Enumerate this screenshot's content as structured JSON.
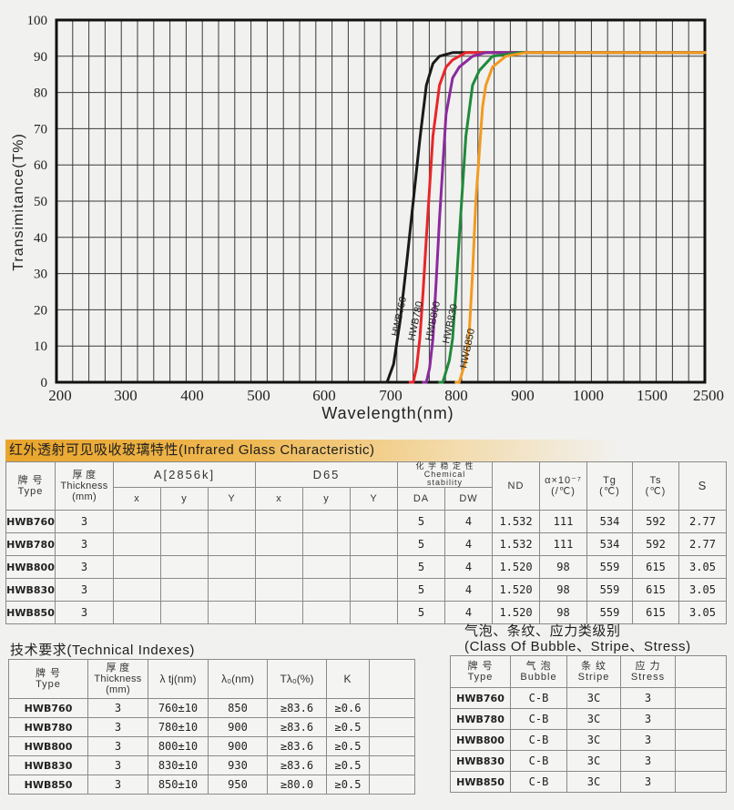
{
  "chart_data": {
    "type": "line",
    "title": "",
    "xlabel": "Wavelength(nm)",
    "ylabel": "Transimitance(T%)",
    "x_ticks": [
      "200",
      "300",
      "400",
      "500",
      "600",
      "700",
      "800",
      "900",
      "1000",
      "1500",
      "2500"
    ],
    "y_ticks": [
      "0",
      "10",
      "20",
      "30",
      "40",
      "50",
      "60",
      "70",
      "80",
      "90",
      "100"
    ],
    "ylim": [
      0,
      100
    ],
    "grid": true,
    "legend": "inline labels rotated along curves",
    "series": [
      {
        "name": "HWB760",
        "color": "#1a1a1a",
        "x": [
          690,
          700,
          710,
          720,
          730,
          740,
          750,
          760,
          770,
          780,
          800,
          900,
          2500
        ],
        "y": [
          0,
          0,
          5,
          17,
          33,
          50,
          67,
          82,
          88,
          90,
          91,
          91,
          91
        ]
      },
      {
        "name": "HWB780",
        "color": "#e8262a",
        "x": [
          735,
          740,
          745,
          750,
          755,
          760,
          770,
          780,
          790,
          800,
          820,
          900,
          2500
        ],
        "y": [
          0,
          0,
          4,
          12,
          25,
          40,
          68,
          82,
          87,
          89,
          91,
          91,
          91
        ]
      },
      {
        "name": "HWB800",
        "color": "#8b2a9e",
        "x": [
          755,
          760,
          765,
          770,
          775,
          780,
          790,
          800,
          810,
          830,
          850,
          900,
          2500
        ],
        "y": [
          0,
          0,
          4,
          12,
          28,
          45,
          74,
          84,
          87,
          90,
          91,
          91,
          91
        ]
      },
      {
        "name": "HWB830",
        "color": "#1f8a3a",
        "x": [
          780,
          785,
          790,
          795,
          800,
          805,
          810,
          820,
          830,
          840,
          860,
          900,
          2500
        ],
        "y": [
          0,
          0,
          3,
          6,
          12,
          25,
          40,
          68,
          82,
          86,
          90,
          91,
          91
        ]
      },
      {
        "name": "HWB850",
        "color": "#f29a21",
        "x": [
          805,
          810,
          815,
          820,
          825,
          830,
          835,
          845,
          850,
          860,
          880,
          910,
          2500
        ],
        "y": [
          0,
          0,
          3,
          6,
          14,
          30,
          50,
          76,
          82,
          87,
          90,
          91,
          91
        ]
      }
    ]
  },
  "characteristic": {
    "title": "红外透射可见吸收玻璃特性(Infrared Glass Characteristic)",
    "headers": {
      "type_cn": "牌 号",
      "type_en": "Type",
      "thick_cn": "厚 度",
      "thick_en": "Thickness",
      "thick_unit": "(mm)",
      "a2856": "A[2856k]",
      "d65": "D65",
      "x": "x",
      "y": "y",
      "Y": "Y",
      "chem_cn": "化 学 稳 定 性",
      "chem_en1": "Chemical",
      "chem_en2": "stability",
      "da": "DA",
      "dw": "DW",
      "nd": "ND",
      "alpha": "α×10⁻⁷",
      "alpha_unit": "(/℃)",
      "tg": "Tg",
      "tg_unit": "(℃)",
      "ts": "Ts",
      "ts_unit": "(℃)",
      "s": "S"
    },
    "rows": [
      {
        "type": "HWB760",
        "thickness": "3",
        "ax": "",
        "ay": "",
        "aY": "",
        "dx": "",
        "dy": "",
        "dY": "",
        "da": "5",
        "dw": "4",
        "nd": "1.532",
        "alpha": "111",
        "tg": "534",
        "ts": "592",
        "s": "2.77"
      },
      {
        "type": "HWB780",
        "thickness": "3",
        "ax": "",
        "ay": "",
        "aY": "",
        "dx": "",
        "dy": "",
        "dY": "",
        "da": "5",
        "dw": "4",
        "nd": "1.532",
        "alpha": "111",
        "tg": "534",
        "ts": "592",
        "s": "2.77"
      },
      {
        "type": "HWB800",
        "thickness": "3",
        "ax": "",
        "ay": "",
        "aY": "",
        "dx": "",
        "dy": "",
        "dY": "",
        "da": "5",
        "dw": "4",
        "nd": "1.520",
        "alpha": "98",
        "tg": "559",
        "ts": "615",
        "s": "3.05"
      },
      {
        "type": "HWB830",
        "thickness": "3",
        "ax": "",
        "ay": "",
        "aY": "",
        "dx": "",
        "dy": "",
        "dY": "",
        "da": "5",
        "dw": "4",
        "nd": "1.520",
        "alpha": "98",
        "tg": "559",
        "ts": "615",
        "s": "3.05"
      },
      {
        "type": "HWB850",
        "thickness": "3",
        "ax": "",
        "ay": "",
        "aY": "",
        "dx": "",
        "dy": "",
        "dY": "",
        "da": "5",
        "dw": "4",
        "nd": "1.520",
        "alpha": "98",
        "tg": "559",
        "ts": "615",
        "s": "3.05"
      }
    ]
  },
  "technical": {
    "title": "技术要求(Technical Indexes)",
    "headers": {
      "type_cn": "牌 号",
      "type_en": "Type",
      "thick_cn": "厚 度",
      "thick_en": "Thickness",
      "thick_unit": "(mm)",
      "ltj": "λ tj(nm)",
      "l0": "λ₀(nm)",
      "tl0": "Tλ₀(%)",
      "k": "K",
      "blank": ""
    },
    "rows": [
      {
        "type": "HWB760",
        "thickness": "3",
        "ltj": "760±10",
        "l0": "850",
        "tl0": "≥83.6",
        "k": "≥0.6"
      },
      {
        "type": "HWB780",
        "thickness": "3",
        "ltj": "780±10",
        "l0": "900",
        "tl0": "≥83.6",
        "k": "≥0.5"
      },
      {
        "type": "HWB800",
        "thickness": "3",
        "ltj": "800±10",
        "l0": "900",
        "tl0": "≥83.6",
        "k": "≥0.5"
      },
      {
        "type": "HWB830",
        "thickness": "3",
        "ltj": "830±10",
        "l0": "930",
        "tl0": "≥83.6",
        "k": "≥0.5"
      },
      {
        "type": "HWB850",
        "thickness": "3",
        "ltj": "850±10",
        "l0": "950",
        "tl0": "≥80.0",
        "k": "≥0.5"
      }
    ]
  },
  "bubble": {
    "title_cn": "气泡、条纹、应力类级别",
    "title_en": "(Class Of Bubble、Stripe、Stress)",
    "headers": {
      "type_cn": "牌 号",
      "type_en": "Type",
      "bubble_cn": "气 泡",
      "bubble_en": "Bubble",
      "stripe_cn": "条 纹",
      "stripe_en": "Stripe",
      "stress_cn": "应 力",
      "stress_en": "Stress"
    },
    "rows": [
      {
        "type": "HWB760",
        "bubble": "C-B",
        "stripe": "3C",
        "stress": "3"
      },
      {
        "type": "HWB780",
        "bubble": "C-B",
        "stripe": "3C",
        "stress": "3"
      },
      {
        "type": "HWB800",
        "bubble": "C-B",
        "stripe": "3C",
        "stress": "3"
      },
      {
        "type": "HWB830",
        "bubble": "C-B",
        "stripe": "3C",
        "stress": "3"
      },
      {
        "type": "HWB850",
        "bubble": "C-B",
        "stripe": "3C",
        "stress": "3"
      }
    ]
  }
}
